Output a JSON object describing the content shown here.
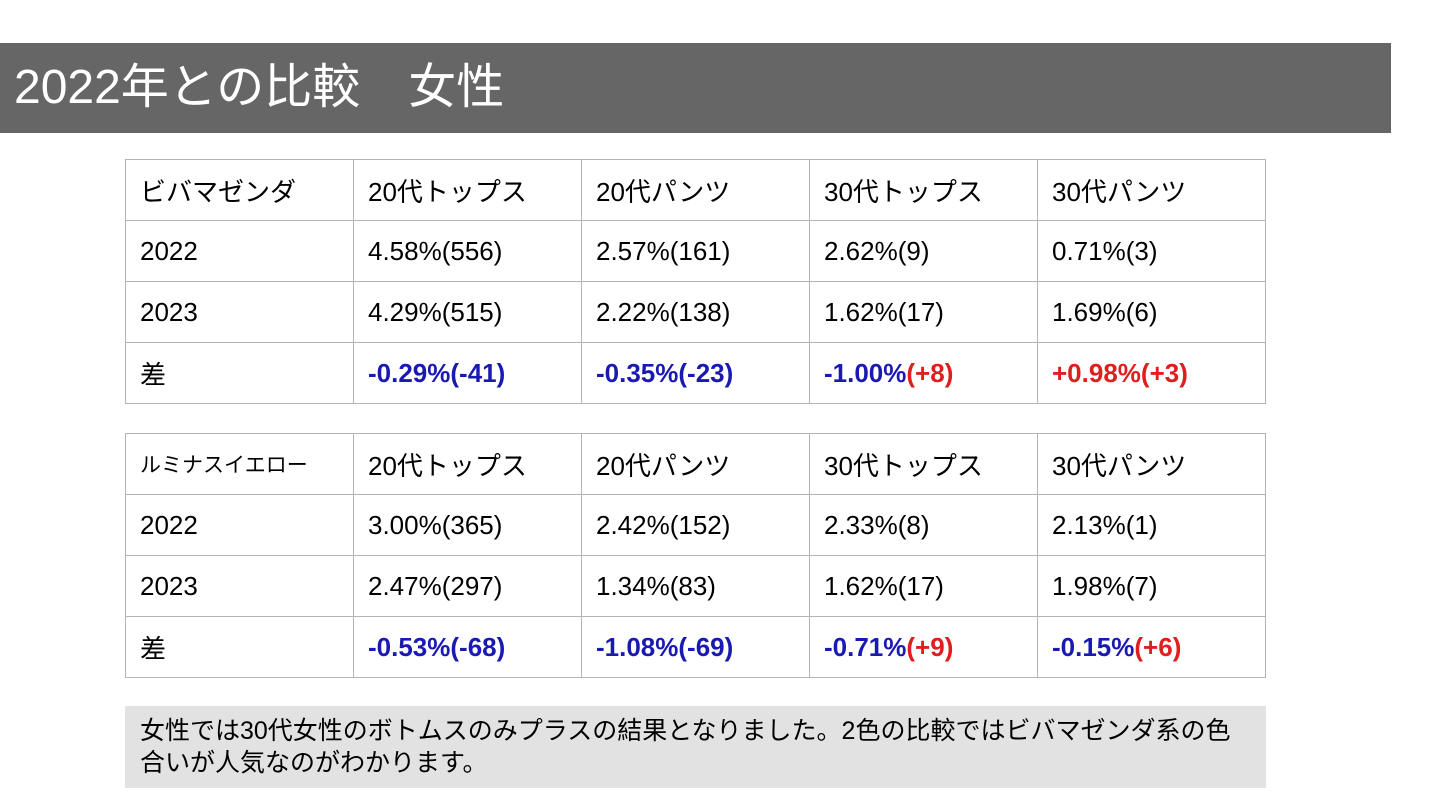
{
  "title": "2022年との比較　女性",
  "colors": {
    "title_bg": "#666666",
    "negative": "#1a1ab2",
    "positive": "#e01e1e",
    "note_bg": "#e2e2e2"
  },
  "tables": [
    {
      "headers": [
        "ビバマゼンダ",
        "20代トップス",
        "20代パンツ",
        "30代トップス",
        "30代パンツ"
      ],
      "rows": [
        [
          "2022",
          "4.58%(556)",
          "2.57%(161)",
          "2.62%(9)",
          "0.71%(3)"
        ],
        [
          "2023",
          "4.29%(515)",
          "2.22%(138)",
          "1.62%(17)",
          "1.69%(6)"
        ]
      ],
      "diff_label": "差",
      "diff": [
        {
          "pct": "-0.29%",
          "count": "(-41)"
        },
        {
          "pct": "-0.35%",
          "count": "(-23)"
        },
        {
          "pct": "-1.00%",
          "count": "(+8)"
        },
        {
          "pct": "+0.98%",
          "count": "(+3)"
        }
      ]
    },
    {
      "headers": [
        "ルミナスイエロー",
        "20代トップス",
        "20代パンツ",
        "30代トップス",
        "30代パンツ"
      ],
      "rows": [
        [
          "2022",
          "3.00%(365)",
          "2.42%(152)",
          "2.33%(8)",
          "2.13%(1)"
        ],
        [
          "2023",
          "2.47%(297)",
          "1.34%(83)",
          "1.62%(17)",
          "1.98%(7)"
        ]
      ],
      "diff_label": "差",
      "diff": [
        {
          "pct": "-0.53%",
          "count": "(-68)"
        },
        {
          "pct": "-1.08%",
          "count": "(-69)"
        },
        {
          "pct": "-0.71%",
          "count": "(+9)"
        },
        {
          "pct": "-0.15%",
          "count": "(+6)"
        }
      ]
    }
  ],
  "note": "女性では30代女性のボトムスのみプラスの結果となりました。2色の比較ではビバマゼンダ系の色合いが人気なのがわかります。"
}
